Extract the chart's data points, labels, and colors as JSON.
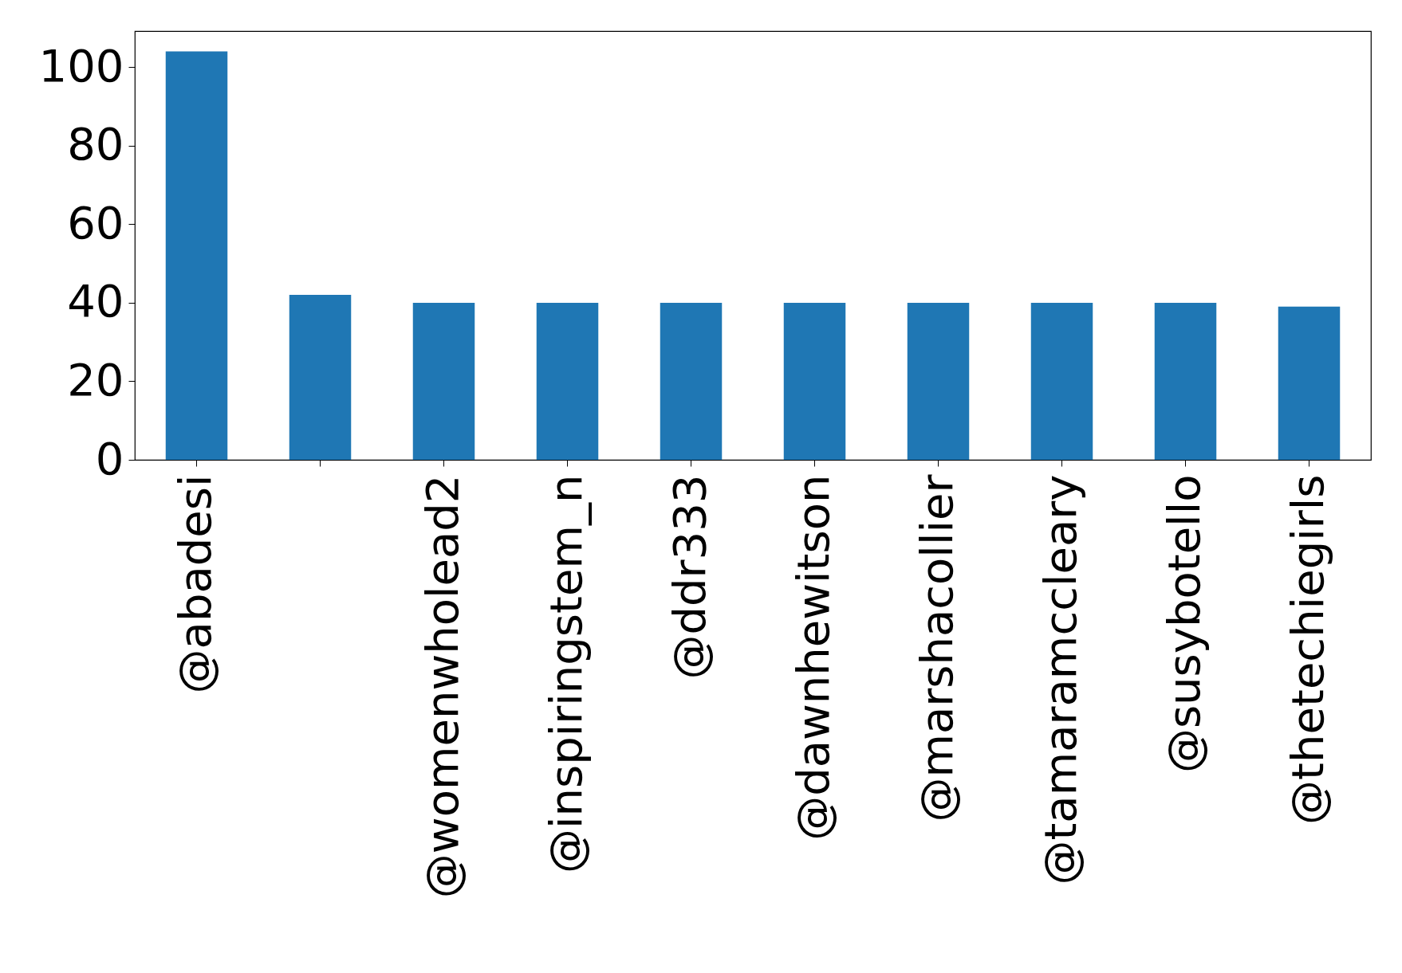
{
  "chart_data": {
    "type": "bar",
    "categories": [
      "@abadesi",
      null,
      "@womenwholead2",
      "@inspiringstem_n",
      "@ddr333",
      "@dawnhewitson",
      "@marshacollier",
      "@tamaramccleary",
      "@susybotello",
      "@thetechiegirls"
    ],
    "values": [
      104,
      42,
      40,
      40,
      40,
      40,
      40,
      40,
      40,
      39
    ],
    "color": "#1f77b4",
    "ylim": [
      0,
      109.2
    ],
    "yticks": [
      0,
      20,
      40,
      60,
      80,
      100
    ],
    "grid": false
  }
}
